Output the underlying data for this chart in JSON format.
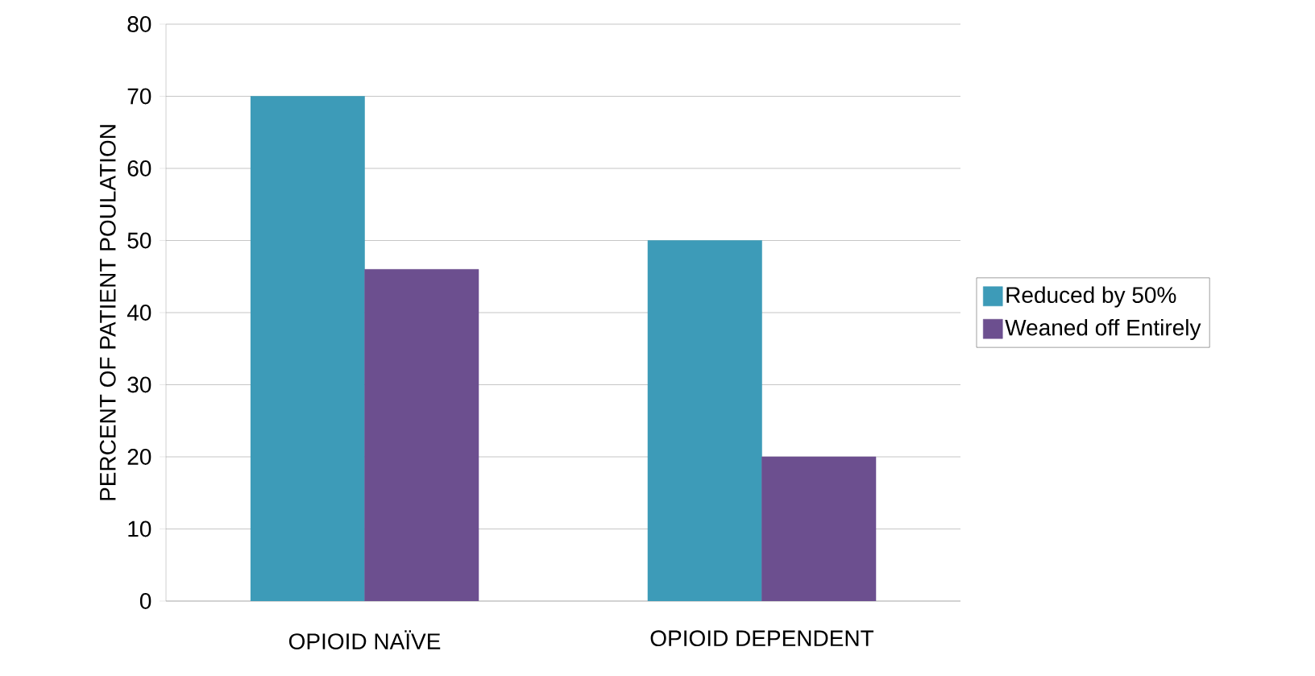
{
  "chart_data": {
    "type": "bar",
    "ylabel": "PERCENT OF PATIENT POULATION",
    "categories": [
      "OPIOID NAÏVE",
      "OPIOID DEPENDENT"
    ],
    "series": [
      {
        "name": "Reduced by 50%",
        "color": "#3d9bb8",
        "values": [
          70,
          50
        ]
      },
      {
        "name": "Weaned off Entirely",
        "color": "#6c4f8f",
        "values": [
          46,
          20
        ]
      }
    ],
    "ylim": [
      0,
      80
    ],
    "yticks": [
      0,
      10,
      20,
      30,
      40,
      50,
      60,
      70,
      80
    ],
    "grid": "y",
    "legend": "right"
  }
}
